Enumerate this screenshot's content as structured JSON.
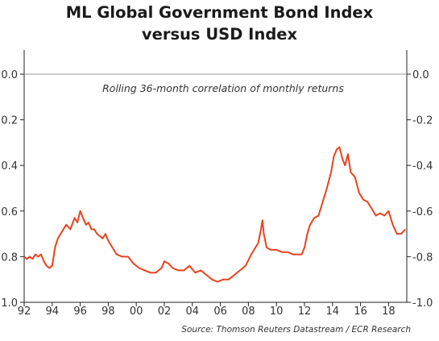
{
  "chart_data": {
    "type": "line",
    "title": "ML Global Government Bond Index",
    "subtitle": "versus USD Index",
    "annotation": "Rolling 36-month correlation of monthly returns",
    "source": "Source: Thomson Reuters Datastream / ECR Research",
    "xlabel": "",
    "ylabel": "",
    "xlim": [
      1992,
      2019.3
    ],
    "ylim": [
      -1.0,
      0.0
    ],
    "grid": "horizontal at 0.0",
    "line_color": "#e8431f",
    "x_ticks": [
      1992,
      1994,
      1996,
      1998,
      2000,
      2002,
      2004,
      2006,
      2008,
      2010,
      2012,
      2014,
      2016,
      2018
    ],
    "x_tick_labels": [
      "92",
      "94",
      "96",
      "98",
      "00",
      "02",
      "04",
      "06",
      "08",
      "10",
      "12",
      "14",
      "16",
      "18"
    ],
    "y_ticks": [
      0.0,
      -0.2,
      -0.4,
      -0.6,
      -0.8,
      -1.0
    ],
    "y_tick_labels_left": [
      "0.0",
      "0.2",
      "0.4",
      "0.6",
      "0.8",
      "1.0"
    ],
    "y_tick_labels_right": [
      "0.0",
      "-0.2",
      "-0.4",
      "-0.6",
      "-0.8",
      "-1.0"
    ],
    "series": [
      {
        "x": [
          1992.0,
          1992.2,
          1992.4,
          1992.6,
          1992.8,
          1993.0,
          1993.2,
          1993.4,
          1993.6,
          1993.8,
          1994.0,
          1994.2,
          1994.4,
          1994.6,
          1994.8,
          1995.0,
          1995.3,
          1995.6,
          1995.8,
          1996.0,
          1996.2,
          1996.4,
          1996.6,
          1996.8,
          1997.0,
          1997.2,
          1997.4,
          1997.6,
          1997.8,
          1998.0,
          1998.3,
          1998.6,
          1999.0,
          1999.4,
          1999.8,
          2000.2,
          2000.6,
          2001.0,
          2001.4,
          2001.8,
          2002.0,
          2002.3,
          2002.6,
          2003.0,
          2003.4,
          2003.8,
          2004.2,
          2004.6,
          2005.0,
          2005.4,
          2005.8,
          2006.2,
          2006.6,
          2007.0,
          2007.4,
          2007.8,
          2008.2,
          2008.5,
          2008.7,
          2008.9,
          2009.0,
          2009.1,
          2009.3,
          2009.6,
          2010.0,
          2010.4,
          2010.8,
          2011.2,
          2011.5,
          2011.8,
          2012.0,
          2012.2,
          2012.4,
          2012.7,
          2013.0,
          2013.3,
          2013.6,
          2013.9,
          2014.1,
          2014.3,
          2014.5,
          2014.7,
          2014.9,
          2015.1,
          2015.3,
          2015.6,
          2015.9,
          2016.2,
          2016.5,
          2016.8,
          2017.1,
          2017.4,
          2017.7,
          2018.0,
          2018.3,
          2018.6,
          2018.9,
          2019.2
        ],
        "values": [
          -0.8,
          -0.81,
          -0.8,
          -0.81,
          -0.79,
          -0.8,
          -0.79,
          -0.82,
          -0.84,
          -0.85,
          -0.84,
          -0.76,
          -0.72,
          -0.7,
          -0.68,
          -0.66,
          -0.68,
          -0.63,
          -0.65,
          -0.6,
          -0.63,
          -0.66,
          -0.65,
          -0.68,
          -0.68,
          -0.7,
          -0.71,
          -0.72,
          -0.7,
          -0.73,
          -0.76,
          -0.79,
          -0.8,
          -0.8,
          -0.83,
          -0.85,
          -0.86,
          -0.87,
          -0.87,
          -0.85,
          -0.82,
          -0.83,
          -0.85,
          -0.86,
          -0.86,
          -0.84,
          -0.87,
          -0.86,
          -0.88,
          -0.9,
          -0.91,
          -0.9,
          -0.9,
          -0.88,
          -0.86,
          -0.84,
          -0.79,
          -0.76,
          -0.74,
          -0.68,
          -0.64,
          -0.7,
          -0.76,
          -0.77,
          -0.77,
          -0.78,
          -0.78,
          -0.79,
          -0.79,
          -0.79,
          -0.76,
          -0.7,
          -0.66,
          -0.63,
          -0.62,
          -0.56,
          -0.5,
          -0.43,
          -0.36,
          -0.33,
          -0.32,
          -0.37,
          -0.4,
          -0.35,
          -0.43,
          -0.45,
          -0.52,
          -0.55,
          -0.56,
          -0.59,
          -0.62,
          -0.61,
          -0.62,
          -0.6,
          -0.66,
          -0.7,
          -0.7,
          -0.68
        ]
      }
    ]
  }
}
